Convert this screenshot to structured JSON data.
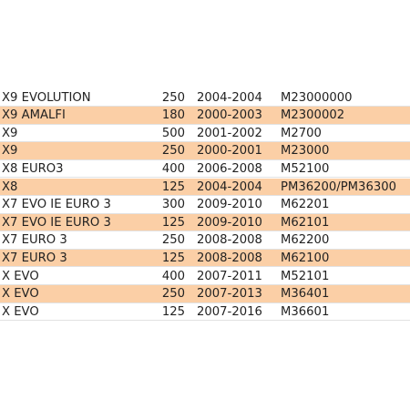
{
  "table": {
    "rows": [
      [
        "X9 EVOLUTION",
        250,
        "2004-2004",
        "M23000000"
      ],
      [
        "X9 AMALFI",
        180,
        "2000-2003",
        "M2300002"
      ],
      [
        "X9",
        500,
        "2001-2002",
        "M2700"
      ],
      [
        "X9",
        250,
        "2000-2001",
        "M23000"
      ],
      [
        "X8 EURO3",
        400,
        "2006-2008",
        "M52100"
      ],
      [
        "X8",
        125,
        "2004-2004",
        "PM36200/PM36300"
      ],
      [
        "X7 EVO IE EURO 3",
        300,
        "2009-2010",
        "M62201"
      ],
      [
        "X7 EVO IE EURO 3",
        125,
        "2009-2010",
        "M62101"
      ],
      [
        "X7 EURO 3",
        250,
        "2008-2008",
        "M62200"
      ],
      [
        "X7 EURO 3",
        125,
        "2008-2008",
        "M62100"
      ],
      [
        "X EVO",
        400,
        "2007-2011",
        "M52101"
      ],
      [
        "X EVO",
        250,
        "2007-2013",
        "M36401"
      ],
      [
        "X EVO",
        125,
        "2007-2016",
        "M36601"
      ]
    ]
  }
}
